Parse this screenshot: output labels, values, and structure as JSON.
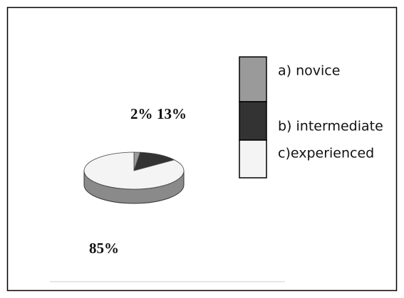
{
  "chart_data": {
    "type": "pie",
    "categories": [
      "a) novice",
      "b) intermediate",
      "c)experienced"
    ],
    "values": [
      2,
      13,
      85
    ],
    "value_labels": [
      "2%",
      "13%",
      "85%"
    ],
    "colors": [
      "#9a9a9a",
      "#333333",
      "#f4f4f4"
    ]
  }
}
